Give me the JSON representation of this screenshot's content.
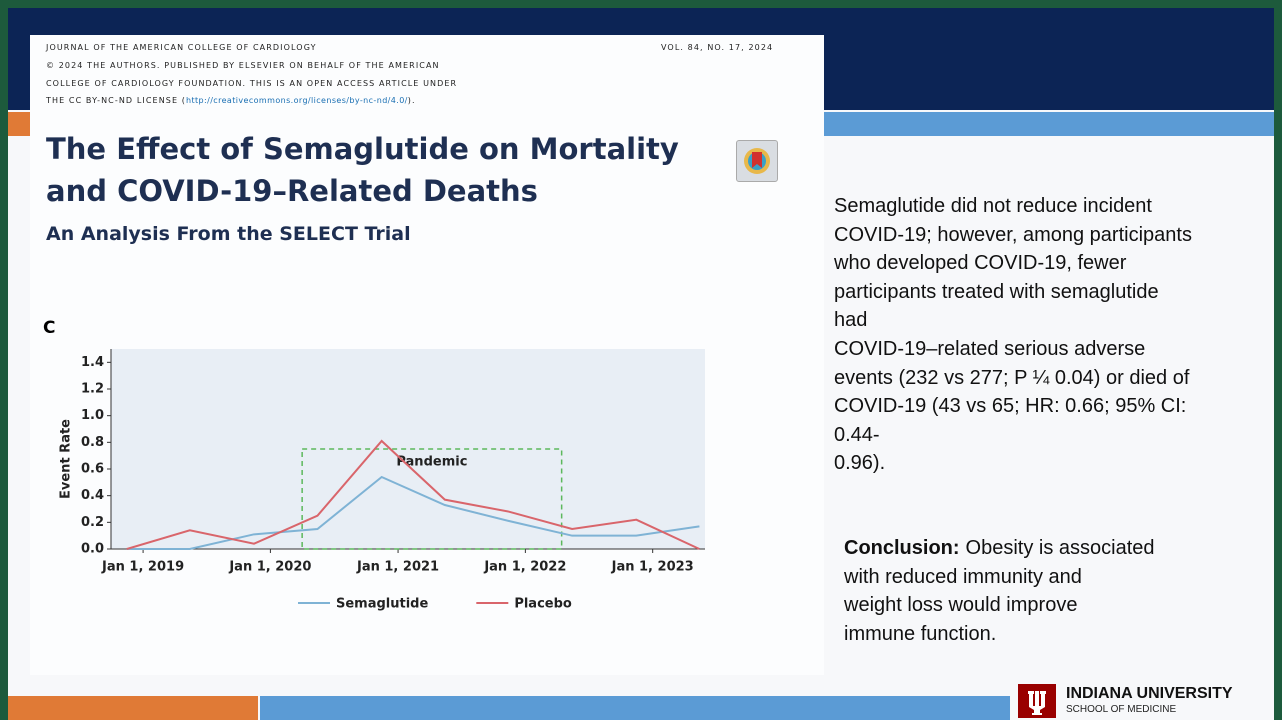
{
  "journal": {
    "header_lines": [
      "JOURNAL OF THE AMERICAN COLLEGE OF CARDIOLOGY",
      "© 2024 THE AUTHORS. PUBLISHED BY ELSEVIER ON BEHALF OF THE AMERICAN",
      "COLLEGE OF CARDIOLOGY FOUNDATION. THIS IS AN OPEN ACCESS ARTICLE UNDER"
    ],
    "license_prefix": "THE CC BY-NC-ND LICENSE (",
    "license_url": "http://creativecommons.org/licenses/by-nc-nd/4.0/",
    "license_suffix": ").",
    "volume": "VOL. 84, NO. 17, 2024",
    "title_lines": [
      "The Effect of Semaglutide on Mortality",
      "and COVID-19–Related Deaths"
    ],
    "subtitle": "An Analysis From the SELECT Trial",
    "panel": "C"
  },
  "summary_lines": [
    "Semaglutide did not reduce incident",
    "COVID-19; however, among participants",
    "who developed COVID-19, fewer",
    "participants treated with semaglutide",
    "had",
    "COVID-19–related serious adverse",
    "events (232 vs 277; P ¼ 0.04) or died of",
    "COVID-19 (43 vs 65; HR: 0.66; 95% CI:",
    "0.44-",
    "0.96)."
  ],
  "conclusion": {
    "label": "Conclusion:",
    "lines": [
      "Obesity is associated",
      "with reduced immunity and",
      "weight loss would improve",
      "immune function."
    ]
  },
  "logo": {
    "name": "INDIANA UNIVERSITY",
    "school": "SCHOOL OF MEDICINE"
  },
  "chart_data": {
    "type": "line",
    "y_label": "Event Rate",
    "x": [
      "2018-11-15",
      "2019-05-15",
      "2019-11-15",
      "2020-05-15",
      "2020-11-15",
      "2021-05-15",
      "2021-11-15",
      "2022-05-15",
      "2022-11-15",
      "2023-05-15"
    ],
    "series": [
      {
        "name": "Semaglutide",
        "color": "#7fb3d5",
        "values": [
          0.0,
          0.0,
          0.11,
          0.15,
          0.54,
          0.33,
          0.21,
          0.1,
          0.1,
          0.17
        ]
      },
      {
        "name": "Placebo",
        "color": "#d9656b",
        "values": [
          0.0,
          0.14,
          0.04,
          0.25,
          0.81,
          0.37,
          0.28,
          0.15,
          0.22,
          0.0
        ]
      }
    ],
    "xlim": [
      "2018-10-01",
      "2023-05-31"
    ],
    "xticks": [
      {
        "value": "2019-01-01",
        "label": "Jan 1, 2019"
      },
      {
        "value": "2020-01-01",
        "label": "Jan 1, 2020"
      },
      {
        "value": "2021-01-01",
        "label": "Jan 1, 2021"
      },
      {
        "value": "2022-01-01",
        "label": "Jan 1, 2022"
      },
      {
        "value": "2023-01-01",
        "label": "Jan 1, 2023"
      }
    ],
    "ylim": [
      0,
      1.5
    ],
    "yticks": [
      {
        "value": 0,
        "label": "0.0"
      },
      0.2,
      0.4,
      0.6,
      0.8,
      {
        "value": 1,
        "label": "1.0"
      },
      1.2,
      1.4
    ],
    "annotation": {
      "label": "Pandemic",
      "x": [
        "2020-04-01",
        "2022-04-15"
      ],
      "y": [
        0,
        0.75
      ],
      "color": "#5cb85c"
    },
    "legend": "bottom"
  }
}
